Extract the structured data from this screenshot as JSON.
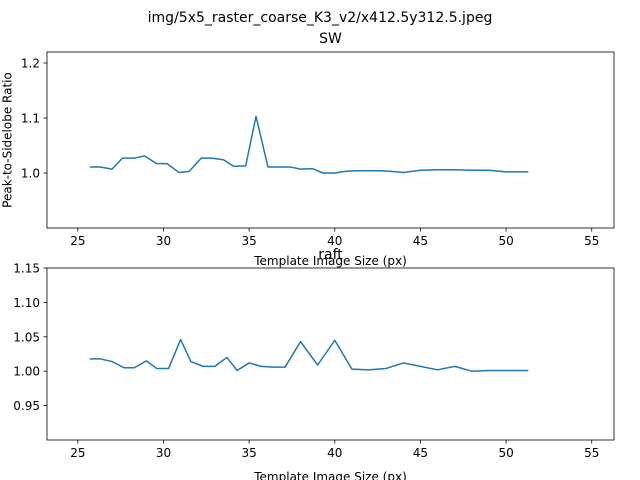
{
  "figure": {
    "suptitle": "img/5x5_raster_coarse_K3_v2/x412.5y312.5.jpeg"
  },
  "line_color": "#1f77b4",
  "chart_data": [
    {
      "type": "line",
      "title": "SW",
      "xlabel": "Template Image Size (px)",
      "ylabel": "Peak-to-Sidelobe Ratio",
      "xlim": [
        23.2,
        56.3
      ],
      "ylim": [
        0.9,
        1.22
      ],
      "xticks": [
        25,
        30,
        35,
        40,
        45,
        50,
        55
      ],
      "yticks": [
        1.0,
        1.1,
        1.2
      ],
      "ytick_labels": [
        "1.0",
        "1.1",
        "1.2"
      ],
      "grid": false,
      "series": [
        {
          "x": [
            25.7,
            26.3,
            27.0,
            27.6,
            28.3,
            28.9,
            29.6,
            30.2,
            30.9,
            31.5,
            32.2,
            32.8,
            33.5,
            34.1,
            34.8,
            35.4,
            36.1,
            36.7,
            37.4,
            38.0,
            38.7,
            39.3,
            40.0,
            40.6,
            41.3,
            42.0,
            42.6,
            43.3,
            44.0,
            45.0,
            46.0,
            47.0,
            48.0,
            49.0,
            50.0,
            51.3
          ],
          "y": [
            1.011,
            1.011,
            1.007,
            1.027,
            1.027,
            1.031,
            1.017,
            1.017,
            1.001,
            1.003,
            1.027,
            1.027,
            1.024,
            1.012,
            1.013,
            1.103,
            1.011,
            1.011,
            1.011,
            1.007,
            1.008,
            1.0,
            1.0,
            1.003,
            1.004,
            1.004,
            1.004,
            1.003,
            1.001,
            1.005,
            1.006,
            1.006,
            1.005,
            1.005,
            1.002,
            1.002
          ]
        }
      ]
    },
    {
      "type": "line",
      "title": "raft",
      "xlabel": "Template Image Size (px)",
      "ylabel": "",
      "xlim": [
        23.2,
        56.3
      ],
      "ylim": [
        0.9,
        1.15
      ],
      "xticks": [
        25,
        30,
        35,
        40,
        45,
        50,
        55
      ],
      "yticks": [
        0.95,
        1.0,
        1.05,
        1.1,
        1.15
      ],
      "ytick_labels": [
        "0.95",
        "1.00",
        "1.05",
        "1.10",
        "1.15"
      ],
      "grid": false,
      "series": [
        {
          "x": [
            25.7,
            26.3,
            27.0,
            27.7,
            28.3,
            29.0,
            29.6,
            30.3,
            31.0,
            31.6,
            32.3,
            33.0,
            33.7,
            34.3,
            35.0,
            35.7,
            36.4,
            37.1,
            38.0,
            39.0,
            40.0,
            41.0,
            42.0,
            43.0,
            44.0,
            45.0,
            46.0,
            47.0,
            48.0,
            49.0,
            50.0,
            51.3
          ],
          "y": [
            1.018,
            1.018,
            1.014,
            1.005,
            1.005,
            1.015,
            1.004,
            1.004,
            1.046,
            1.014,
            1.007,
            1.007,
            1.02,
            1.001,
            1.012,
            1.007,
            1.006,
            1.006,
            1.043,
            1.009,
            1.045,
            1.003,
            1.002,
            1.004,
            1.012,
            1.007,
            1.002,
            1.007,
            1.0,
            1.001,
            1.001,
            1.001
          ]
        }
      ]
    }
  ]
}
